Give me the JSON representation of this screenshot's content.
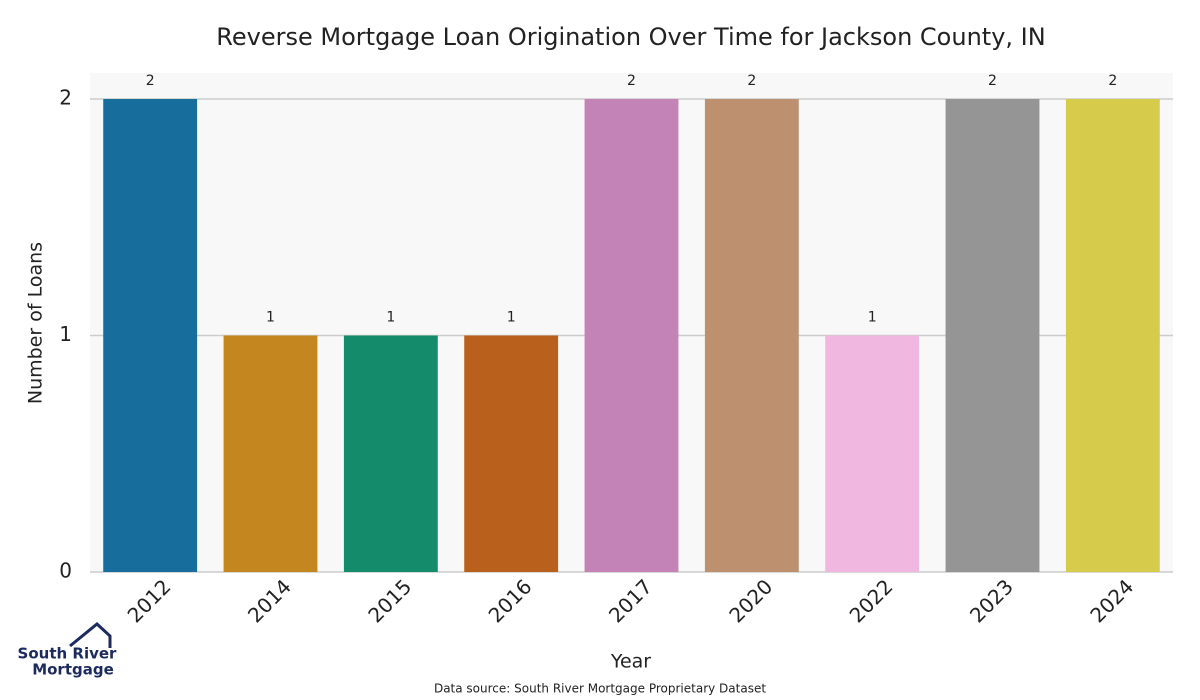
{
  "chart_data": {
    "type": "bar",
    "title": "Reverse Mortgage Loan Origination Over Time for Jackson County, IN",
    "x_label": "Year",
    "y_label": "Number of Loans",
    "source": "Data source: South River Mortgage Proprietary Dataset",
    "categories": [
      "2012",
      "2014",
      "2015",
      "2016",
      "2017",
      "2020",
      "2022",
      "2023",
      "2024"
    ],
    "values": [
      2,
      1,
      1,
      1,
      2,
      2,
      1,
      2,
      2
    ],
    "colors": [
      "#176d9c",
      "#c4871f",
      "#148b6a",
      "#b8601c",
      "#c383b6",
      "#bd9170",
      "#f0b8e0",
      "#959595",
      "#d6cb4a"
    ],
    "ylim": [
      0,
      2.11
    ],
    "yticks": [
      0,
      1,
      2
    ],
    "grid": true
  },
  "logo": {
    "lines": [
      "South River",
      "Mortgage"
    ]
  }
}
